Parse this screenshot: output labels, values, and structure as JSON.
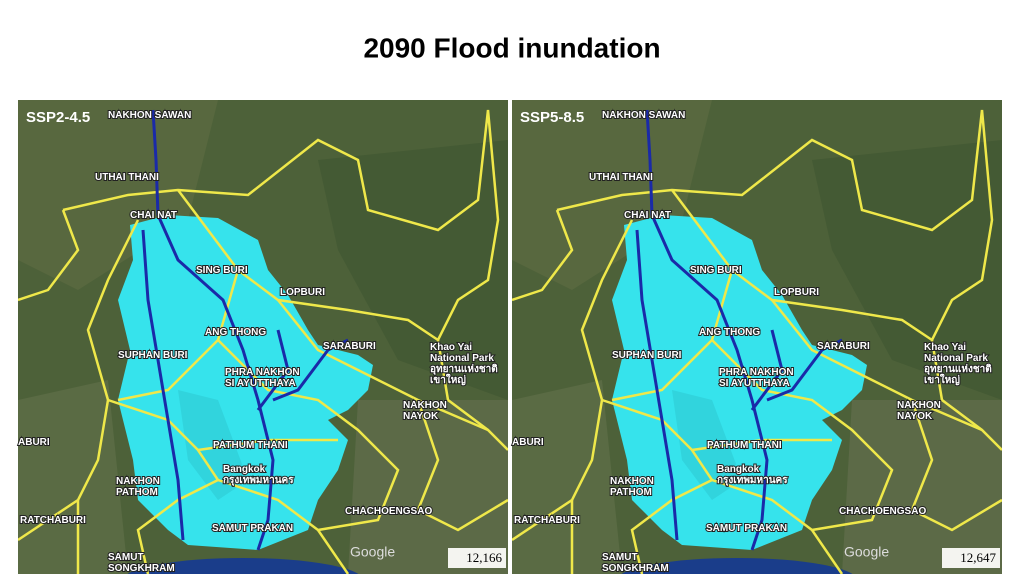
{
  "title": "2090 Flood inundation",
  "panels": [
    {
      "scenario": "SSP2-4.5",
      "value_label": "12,166"
    },
    {
      "scenario": "SSP5-8.5",
      "value_label": "12,647"
    }
  ],
  "watermark": "Google",
  "places": [
    {
      "lines": [
        "NAKHON SAWAN"
      ]
    },
    {
      "lines": [
        "UTHAI THANI"
      ]
    },
    {
      "lines": [
        "CHAI NAT"
      ]
    },
    {
      "lines": [
        "SING BURI"
      ]
    },
    {
      "lines": [
        "LOPBURI"
      ]
    },
    {
      "lines": [
        "ANG THONG"
      ]
    },
    {
      "lines": [
        "SARABURI"
      ]
    },
    {
      "lines": [
        "SUPHAN BURI"
      ]
    },
    {
      "lines": [
        "PHRA NAKHON",
        "SI AYUTTHAYA"
      ]
    },
    {
      "lines": [
        "NAKHON",
        "NAYOK"
      ]
    },
    {
      "lines": [
        "PATHUM THANI"
      ]
    },
    {
      "lines": [
        "Bangkok",
        "กรุงเทพมหานคร"
      ]
    },
    {
      "lines": [
        "NAKHON",
        "PATHOM"
      ]
    },
    {
      "lines": [
        "SAMUT PRAKAN"
      ]
    },
    {
      "lines": [
        "CHACHOENGSAO"
      ]
    },
    {
      "lines": [
        "RATCHABURI"
      ]
    },
    {
      "lines": [
        "SAMUT",
        "SONGKHRAM"
      ]
    },
    {
      "lines": [
        "ABURI"
      ]
    },
    {
      "lines": [
        "Khao Yai",
        "National Park",
        "อุทยานแห่งชาติ",
        "เขาใหญ่"
      ]
    }
  ]
}
